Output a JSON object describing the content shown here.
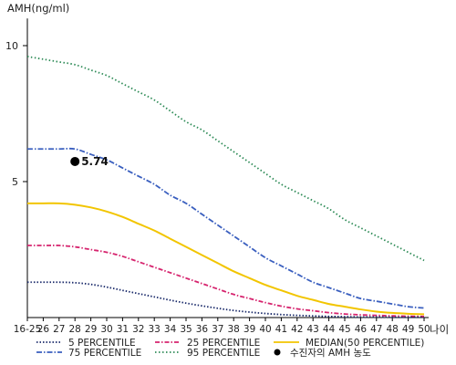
{
  "chart_data": {
    "type": "line",
    "ylabel": "AMH(ng/ml)",
    "xlabel": "나이",
    "y_ticks": [
      5,
      10
    ],
    "ylim": [
      0,
      11
    ],
    "x_categories": [
      "16-25",
      "26",
      "27",
      "28",
      "29",
      "30",
      "31",
      "32",
      "33",
      "34",
      "35",
      "36",
      "37",
      "38",
      "39",
      "40",
      "41",
      "42",
      "43",
      "44",
      "45",
      "46",
      "47",
      "48",
      "49",
      "50"
    ],
    "series": [
      {
        "name": "95 PERCENTILE",
        "color": "#2e8b57",
        "dash": "1.5,2.5",
        "values": [
          9.6,
          9.5,
          9.4,
          9.3,
          9.1,
          8.9,
          8.6,
          8.3,
          8.0,
          7.6,
          7.2,
          6.9,
          6.5,
          6.1,
          5.7,
          5.3,
          4.9,
          4.6,
          4.3,
          4.0,
          3.6,
          3.3,
          3.0,
          2.7,
          2.4,
          2.1
        ]
      },
      {
        "name": "75 PERCENTILE",
        "color": "#3a5fbf",
        "dash": "6,2,1.5,2",
        "values": [
          6.2,
          6.2,
          6.2,
          6.2,
          6.0,
          5.8,
          5.5,
          5.2,
          4.9,
          4.5,
          4.2,
          3.8,
          3.4,
          3.0,
          2.6,
          2.2,
          1.9,
          1.6,
          1.3,
          1.1,
          0.9,
          0.7,
          0.6,
          0.5,
          0.4,
          0.35
        ]
      },
      {
        "name": "MEDIAN(50 PERCENTILE)",
        "color": "#f2c500",
        "dash": "",
        "values": [
          4.2,
          4.2,
          4.2,
          4.15,
          4.05,
          3.9,
          3.7,
          3.45,
          3.2,
          2.9,
          2.6,
          2.3,
          2.0,
          1.7,
          1.45,
          1.2,
          1.0,
          0.8,
          0.65,
          0.5,
          0.4,
          0.3,
          0.22,
          0.17,
          0.14,
          0.12
        ]
      },
      {
        "name": "25 PERCENTILE",
        "color": "#d6246e",
        "dash": "5,2,1.5,2",
        "values": [
          2.65,
          2.65,
          2.65,
          2.6,
          2.5,
          2.4,
          2.25,
          2.05,
          1.85,
          1.65,
          1.45,
          1.25,
          1.05,
          0.85,
          0.7,
          0.55,
          0.42,
          0.32,
          0.25,
          0.18,
          0.13,
          0.1,
          0.08,
          0.06,
          0.05,
          0.04
        ]
      },
      {
        "name": "5 PERCENTILE",
        "color": "#1b2b6b",
        "dash": "1.5,2",
        "values": [
          1.3,
          1.3,
          1.3,
          1.28,
          1.22,
          1.12,
          1.0,
          0.88,
          0.76,
          0.64,
          0.53,
          0.43,
          0.34,
          0.26,
          0.2,
          0.15,
          0.11,
          0.08,
          0.06,
          0.04,
          0.03,
          0.02,
          0.02,
          0.01,
          0.01,
          0.01
        ]
      }
    ],
    "marker": {
      "x": "28",
      "y": 5.74,
      "label": "5.74",
      "legend": "수진자의 AMH 농도"
    },
    "legend": [
      {
        "label": "5 PERCENTILE",
        "color": "#1b2b6b",
        "dash": "1.5,2"
      },
      {
        "label": "25 PERCENTILE",
        "color": "#d6246e",
        "dash": "5,2,1.5,2"
      },
      {
        "label": "MEDIAN(50 PERCENTILE)",
        "color": "#f2c500",
        "dash": ""
      },
      {
        "label": "75 PERCENTILE",
        "color": "#3a5fbf",
        "dash": "6,2,1.5,2"
      },
      {
        "label": "95 PERCENTILE",
        "color": "#2e8b57",
        "dash": "1.5,2.5"
      },
      {
        "label": "수진자의 AMH 농도",
        "color": "#000000",
        "dash": "marker"
      }
    ]
  }
}
